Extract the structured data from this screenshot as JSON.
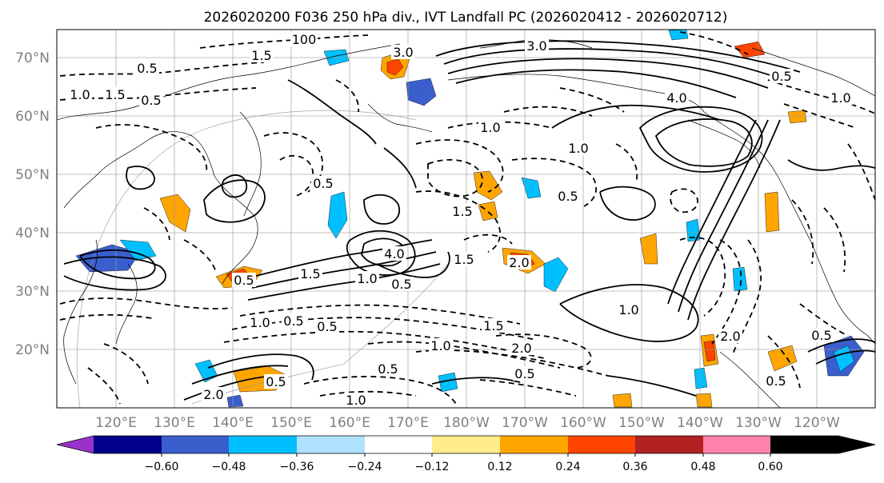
{
  "title": "2026020200 F036 250 hPa div., IVT Landfall PC (2026020412 - 2026020712)",
  "lat_labels": [
    "70°N",
    "60°N",
    "50°N",
    "40°N",
    "30°N",
    "20°N"
  ],
  "lon_labels": [
    "120°E",
    "130°E",
    "140°E",
    "150°E",
    "160°E",
    "170°E",
    "180°W",
    "170°W",
    "160°W",
    "150°W",
    "140°W",
    "130°W",
    "120°W"
  ],
  "colorbar": {
    "colors": [
      "#9932cc",
      "#00008b",
      "#3a5fcd",
      "#00bfff",
      "#b0e2ff",
      "#ffffff",
      "#ffec8b",
      "#ffa500",
      "#ff4500",
      "#b22222",
      "#ff82ab"
    ],
    "ticks": [
      "−0.60",
      "−0.48",
      "−0.36",
      "−0.24",
      "−0.12",
      "0.12",
      "0.24",
      "0.36",
      "0.48",
      "0.60"
    ]
  },
  "contour_labels": [
    {
      "text": "3.0"
    },
    {
      "text": "3.0"
    },
    {
      "text": "4.0"
    },
    {
      "text": "1.5"
    },
    {
      "text": "0.5"
    },
    {
      "text": "1.0"
    },
    {
      "text": "1.5"
    },
    {
      "text": "0.5"
    },
    {
      "text": "1.5"
    },
    {
      "text": "4.0"
    },
    {
      "text": "1.5"
    },
    {
      "text": "1.0"
    },
    {
      "text": "0.5"
    },
    {
      "text": "1.5"
    },
    {
      "text": "2.0"
    },
    {
      "text": "0.5"
    },
    {
      "text": "1.0"
    },
    {
      "text": "1.0"
    },
    {
      "text": "1.0"
    },
    {
      "text": "0.5"
    },
    {
      "text": "0.5"
    },
    {
      "text": "1.0"
    },
    {
      "text": "0.5"
    },
    {
      "text": "2.0"
    },
    {
      "text": "0.5"
    },
    {
      "text": "0.5"
    },
    {
      "text": "1.0"
    },
    {
      "text": "2.0"
    },
    {
      "text": "0.5"
    },
    {
      "text": "0.5"
    },
    {
      "text": "1.0"
    },
    {
      "text": "2.0"
    },
    {
      "text": "0.5"
    },
    {
      "text": "1.5"
    },
    {
      "text": "100"
    },
    {
      "text": "0.5"
    },
    {
      "text": "1.0"
    },
    {
      "text": "0.5"
    }
  ],
  "shading": [
    {
      "color": "#ffa500"
    },
    {
      "color": "#ff4500"
    },
    {
      "color": "#ffa500"
    },
    {
      "color": "#3a5fcd"
    },
    {
      "color": "#00bfff"
    },
    {
      "color": "#3a5fcd"
    },
    {
      "color": "#00bfff"
    },
    {
      "color": "#ffa500"
    },
    {
      "color": "#ff4500"
    },
    {
      "color": "#00bfff"
    },
    {
      "color": "#ffa500"
    },
    {
      "color": "#ff4500"
    },
    {
      "color": "#ffa500"
    },
    {
      "color": "#00bfff"
    },
    {
      "color": "#ffa500"
    },
    {
      "color": "#00bfff"
    },
    {
      "color": "#ffa500"
    },
    {
      "color": "#00bfff"
    },
    {
      "color": "#ffa500"
    },
    {
      "color": "#3a5fcd"
    },
    {
      "color": "#00bfff"
    },
    {
      "color": "#ffa500"
    },
    {
      "color": "#ff4500"
    },
    {
      "color": "#00bfff"
    },
    {
      "color": "#ffa500"
    },
    {
      "color": "#00bfff"
    },
    {
      "color": "#ffa500"
    },
    {
      "color": "#00bfff"
    },
    {
      "color": "#3a5fcd"
    },
    {
      "color": "#ffa500"
    },
    {
      "color": "#00bfff"
    },
    {
      "color": "#ffa500"
    },
    {
      "color": "#ff4500"
    },
    {
      "color": "#00bfff"
    },
    {
      "color": "#ffa500"
    }
  ]
}
